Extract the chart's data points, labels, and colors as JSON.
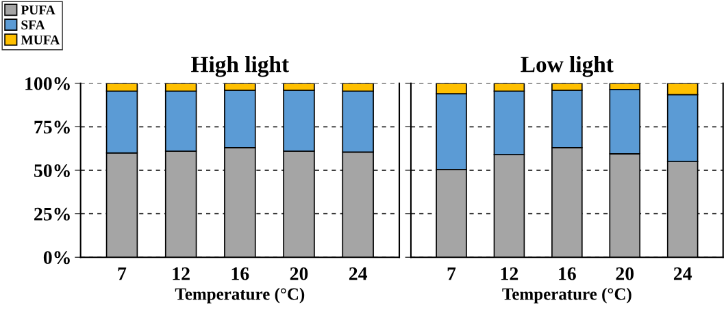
{
  "chart_data": [
    {
      "type": "bar",
      "title": "High light",
      "xlabel": "Temperature (°C)",
      "categories": [
        "7",
        "12",
        "16",
        "20",
        "24"
      ],
      "stacked": true,
      "ylim": [
        0,
        100
      ],
      "yticks": [
        {
          "value": 0,
          "label": "0%"
        },
        {
          "value": 25,
          "label": "25%"
        },
        {
          "value": 50,
          "label": "50%"
        },
        {
          "value": 75,
          "label": "75%"
        },
        {
          "value": 100,
          "label": "100%"
        }
      ],
      "grid": "y",
      "legend": "top left",
      "series": [
        {
          "name": "PUFA",
          "color": "#a5a5a5",
          "values": [
            60,
            61,
            63,
            61,
            60.5
          ]
        },
        {
          "name": "SFA",
          "color": "#5b9bd5",
          "values": [
            35.5,
            34.5,
            33,
            35,
            35
          ]
        },
        {
          "name": "MUFA",
          "color": "#ffc000",
          "values": [
            4.5,
            4.5,
            4,
            4,
            4.5
          ]
        }
      ]
    },
    {
      "type": "bar",
      "title": "Low light",
      "xlabel": "Temperature (°C)",
      "categories": [
        "7",
        "12",
        "16",
        "20",
        "24"
      ],
      "stacked": true,
      "ylim": [
        0,
        100
      ],
      "yticks": [
        0,
        25,
        50,
        75,
        100
      ],
      "grid": "y",
      "tick_labels": "x",
      "series": [
        {
          "color": "#a5a5a5",
          "values": [
            50.5,
            59,
            63,
            59.5,
            55
          ]
        },
        {
          "color": "#5b9bd5",
          "values": [
            43.5,
            36.5,
            33,
            37,
            38.5
          ]
        },
        {
          "color": "#ffc000",
          "values": [
            6,
            4.5,
            4,
            3.5,
            6.5
          ]
        }
      ]
    }
  ]
}
